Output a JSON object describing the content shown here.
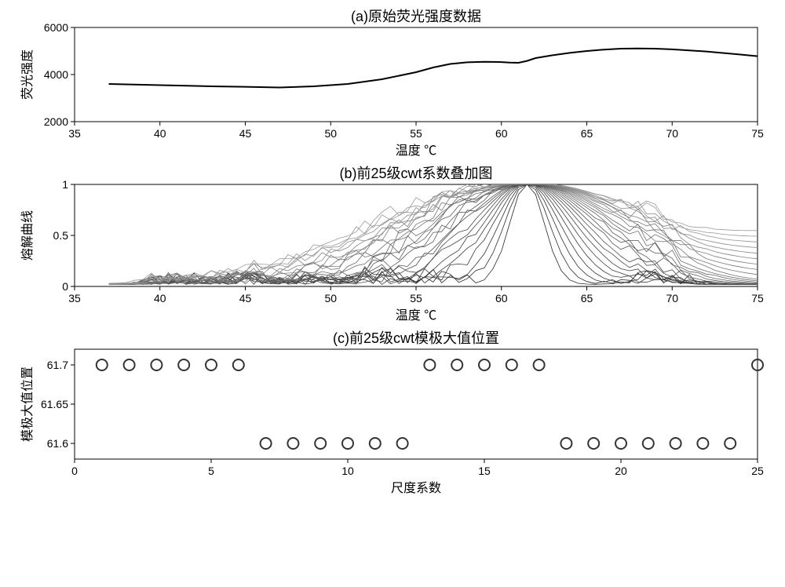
{
  "chart_a": {
    "type": "line",
    "title": "(a)原始荧光强度数据",
    "title_fontsize": 18,
    "xlabel": "温度 ℃",
    "ylabel": "荧光强度",
    "label_fontsize": 16,
    "tick_fontsize": 14,
    "xlim": [
      35,
      75
    ],
    "ylim": [
      2000,
      6000
    ],
    "xticks": [
      35,
      40,
      45,
      50,
      55,
      60,
      65,
      70,
      75
    ],
    "yticks": [
      2000,
      4000,
      6000
    ],
    "line_color": "#000000",
    "line_width": 2,
    "background_color": "#ffffff",
    "border_color": "#000000",
    "x_values": [
      37,
      40,
      43,
      45,
      47,
      49,
      51,
      53,
      55,
      56,
      57,
      58,
      59,
      60,
      60.5,
      61,
      61.5,
      62,
      63,
      64,
      65,
      66,
      67,
      68,
      69,
      70,
      72,
      74,
      75
    ],
    "y_values": [
      3600,
      3550,
      3500,
      3480,
      3450,
      3500,
      3600,
      3800,
      4100,
      4300,
      4450,
      4520,
      4540,
      4530,
      4510,
      4500,
      4580,
      4700,
      4820,
      4920,
      5000,
      5060,
      5100,
      5110,
      5100,
      5070,
      4980,
      4850,
      4780
    ]
  },
  "chart_b": {
    "type": "line",
    "title": "(b)前25级cwt系数叠加图",
    "title_fontsize": 18,
    "xlabel": "温度 ℃",
    "ylabel": "熔解曲线",
    "label_fontsize": 16,
    "tick_fontsize": 14,
    "xlim": [
      35,
      75
    ],
    "ylim": [
      0,
      1
    ],
    "xticks": [
      35,
      40,
      45,
      50,
      55,
      60,
      65,
      70,
      75
    ],
    "yticks": [
      0,
      0.5,
      1
    ],
    "line_color": "#555555",
    "line_width": 0.8,
    "background_color": "#ffffff",
    "border_color": "#000000",
    "num_curves": 25,
    "peak_center": 61.5,
    "peak_spread": [
      1.0,
      1.3,
      1.6,
      1.9,
      2.2,
      2.5,
      2.8,
      3.1,
      3.4,
      3.7,
      4.0,
      4.3,
      4.6,
      4.9,
      5.2,
      5.5,
      5.8,
      6.1,
      6.4,
      6.7,
      7.0,
      7.3,
      7.6,
      7.9,
      8.2
    ]
  },
  "chart_c": {
    "type": "scatter",
    "title": "(c)前25级cwt模极大值位置",
    "title_fontsize": 18,
    "xlabel": "尺度系数",
    "ylabel": "模极大值位置",
    "label_fontsize": 16,
    "tick_fontsize": 14,
    "xlim": [
      0,
      25
    ],
    "ylim": [
      61.58,
      61.72
    ],
    "xticks": [
      0,
      5,
      10,
      15,
      20,
      25
    ],
    "yticks": [
      61.6,
      61.65,
      61.7
    ],
    "marker_color": "#333333",
    "marker_fill": "none",
    "marker_size": 7,
    "marker_stroke_width": 2,
    "background_color": "#ffffff",
    "border_color": "#000000",
    "x_values": [
      1,
      2,
      3,
      4,
      5,
      6,
      7,
      8,
      9,
      10,
      11,
      12,
      13,
      14,
      15,
      16,
      17,
      18,
      19,
      20,
      21,
      22,
      23,
      24,
      25
    ],
    "y_values": [
      61.7,
      61.7,
      61.7,
      61.7,
      61.7,
      61.7,
      61.6,
      61.6,
      61.6,
      61.6,
      61.6,
      61.6,
      61.7,
      61.7,
      61.7,
      61.7,
      61.7,
      61.6,
      61.6,
      61.6,
      61.6,
      61.6,
      61.6,
      61.6,
      61.7
    ]
  },
  "layout": {
    "total_width": 980,
    "total_height": 728,
    "plot_area_width": 870,
    "plot_area_left": 80,
    "chart_a_height": 120,
    "chart_b_height": 130,
    "chart_c_height": 130,
    "vertical_gap": 20
  }
}
